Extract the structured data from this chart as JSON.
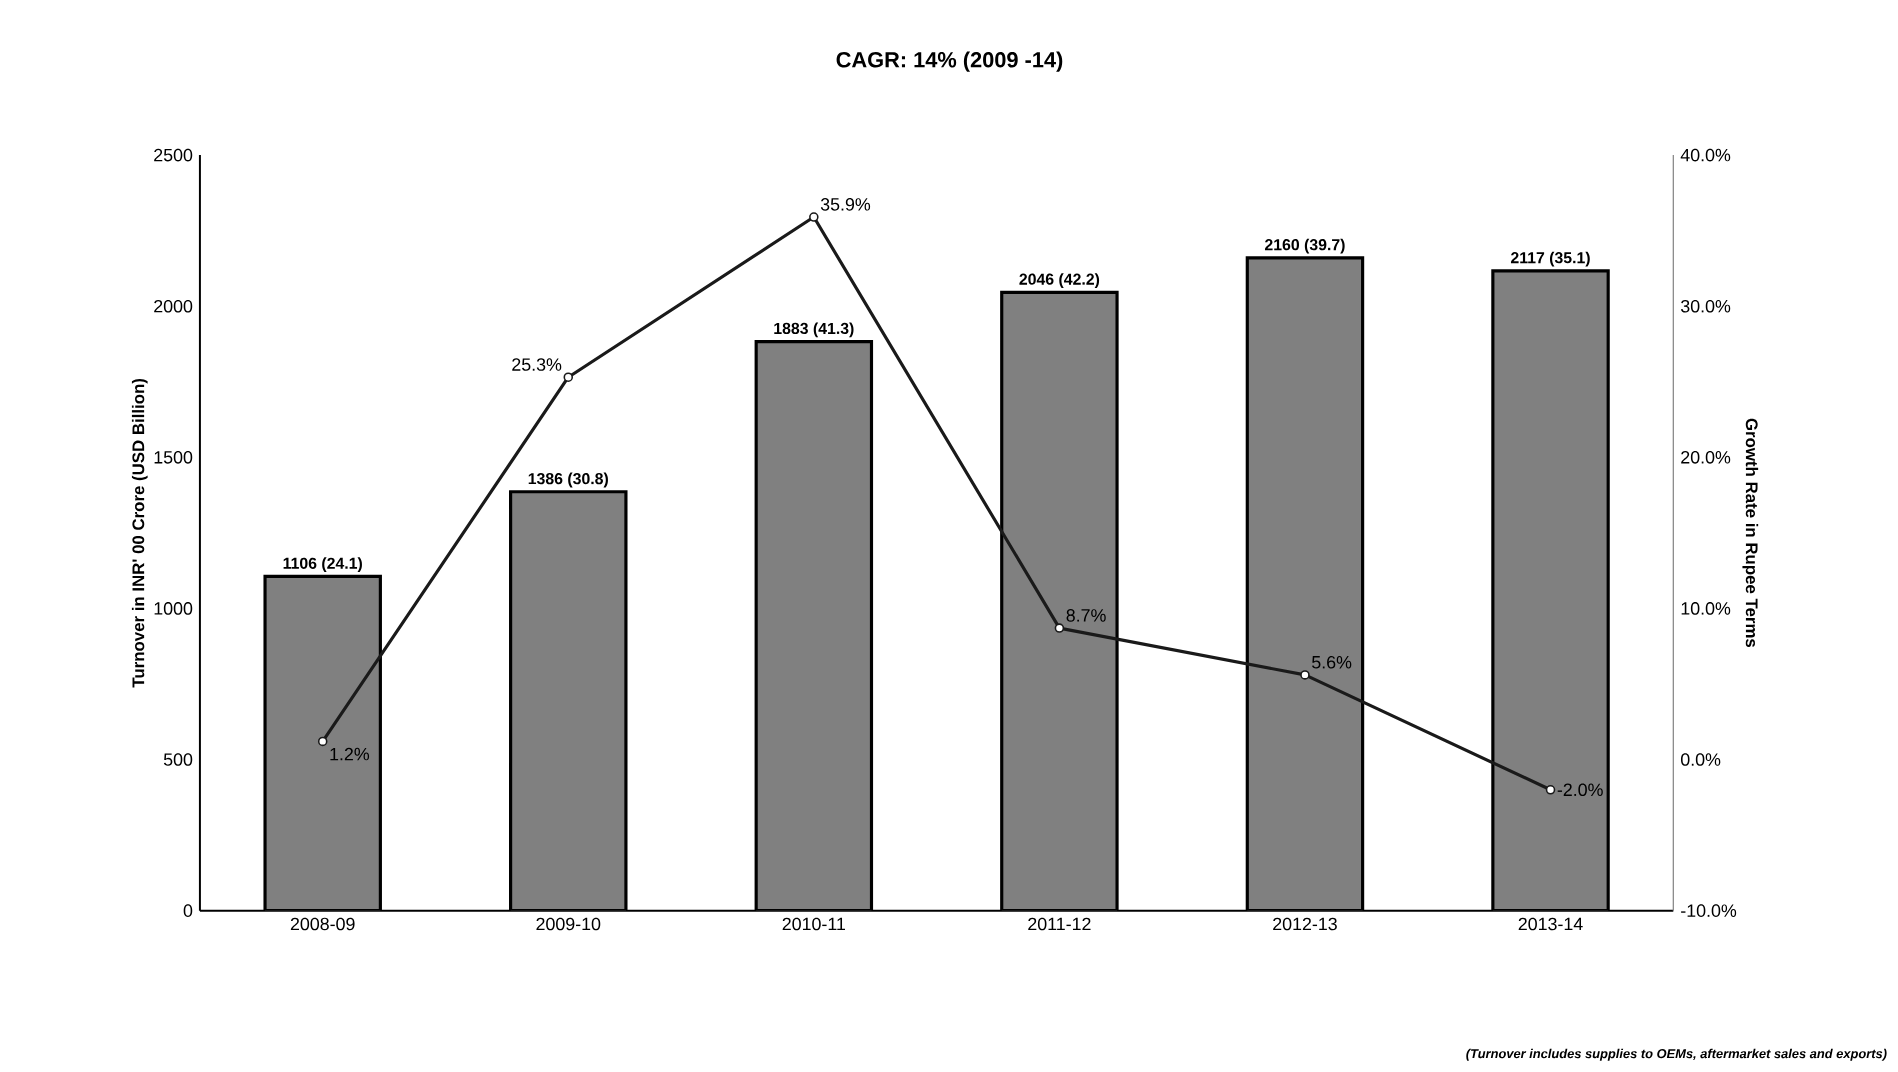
{
  "chart_data": {
    "type": "bar",
    "title": "CAGR: 14% (2009 -14)",
    "ylabel": "Turnover in INR' 00 Crore (USD Billion)",
    "y2label": "Growth Rate in Rupee Terms",
    "categories": [
      "2008-09",
      "2009-10",
      "2010-11",
      "2011-12",
      "2012-13",
      "2013-14"
    ],
    "series": [
      {
        "color": "#808080",
        "values": [
          1106,
          1386,
          1883,
          2046,
          2160,
          2117
        ],
        "value_labels": [
          "1106 (24.1)",
          "1386 (30.8)",
          "1883 (41.3)",
          "2046 (42.2)",
          "2160 (39.7)",
          "2117 (35.1)"
        ]
      },
      {
        "type": "line",
        "axis": "y2",
        "color": "#1a1a1a",
        "marker": "circle",
        "values": [
          1.2,
          25.3,
          35.9,
          8.7,
          5.6,
          -2.0
        ],
        "value_labels": [
          "1.2%",
          "25.3%",
          "35.9%",
          "8.7%",
          "5.6%",
          "-2.0%"
        ]
      }
    ],
    "ylim": [
      0,
      2500
    ],
    "yticks": [
      0,
      500,
      1000,
      1500,
      2000,
      2500
    ],
    "y2lim": [
      -10,
      40
    ],
    "y2ticks": [
      {
        "value": -10,
        "label": "-10.0%"
      },
      {
        "value": 0,
        "label": "0.0%"
      },
      {
        "value": 10,
        "label": "10.0%"
      },
      {
        "value": 20,
        "label": "20.0%"
      },
      {
        "value": 30,
        "label": "30.0%"
      },
      {
        "value": 40,
        "label": "40.0%"
      }
    ],
    "annotations": [
      "(Turnover includes supplies to OEMs, aftermarket sales and exports)"
    ]
  }
}
